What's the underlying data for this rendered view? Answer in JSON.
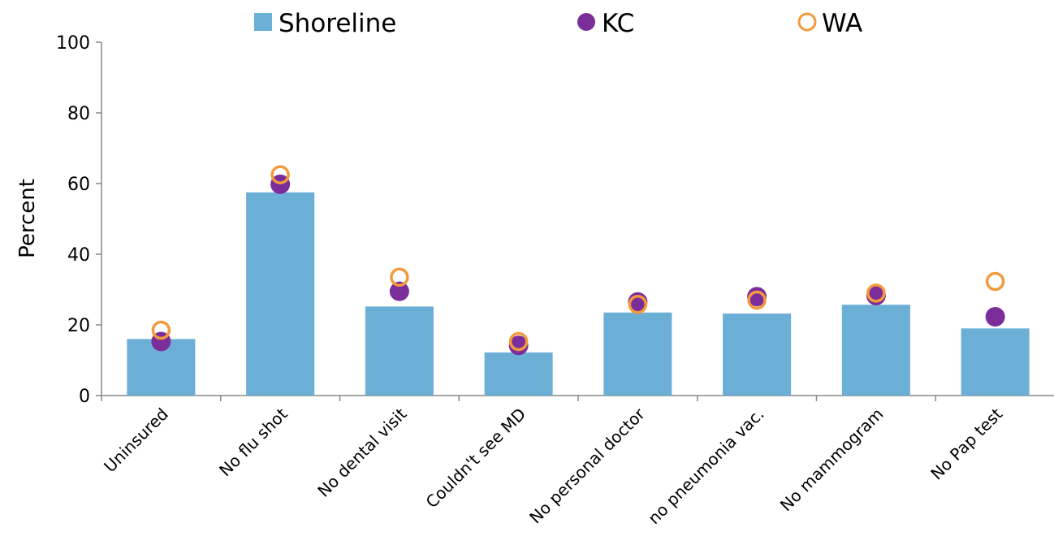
{
  "chart_data": {
    "type": "bar",
    "title": "",
    "xlabel": "",
    "ylabel": "Percent",
    "ylim": [
      0,
      100
    ],
    "yticks": [
      "0",
      "20",
      "40",
      "60",
      "80",
      "100"
    ],
    "categories": [
      "Uninsured",
      "No flu shot",
      "No dental visit",
      "Couldn't see MD",
      "No personal doctor",
      "no pneumonia vac.",
      "No mammogram",
      "No Pap test"
    ],
    "series": [
      {
        "name": "Shoreline",
        "kind": "bar",
        "color": "#6baed6",
        "values": [
          16,
          57.5,
          25.2,
          12.2,
          23.5,
          23.2,
          25.7,
          19
        ]
      },
      {
        "name": "KC",
        "kind": "marker-filled",
        "color": "#7b2d9a",
        "values": [
          15.3,
          59.8,
          29.5,
          14.2,
          26.5,
          28,
          28.3,
          22.3
        ]
      },
      {
        "name": "WA",
        "kind": "marker-open",
        "color": "#f39a3c",
        "values": [
          18.5,
          62.5,
          33.5,
          15.3,
          25.8,
          27,
          29,
          32.3
        ]
      }
    ],
    "legend_position": "top",
    "grid": false
  }
}
